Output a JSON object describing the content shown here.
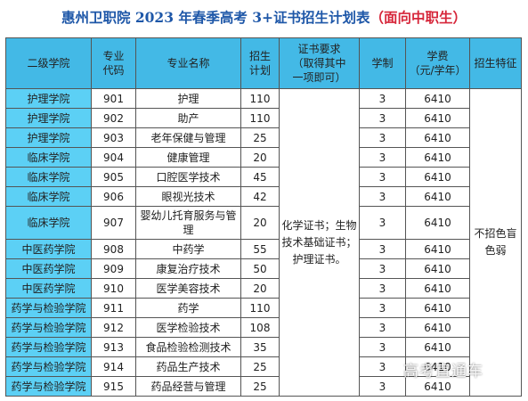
{
  "title": {
    "main": "惠州卫职院 2023 年春季高考 3+证书招生计划表",
    "paren": "（面向中职生）"
  },
  "headers": [
    "二级学院",
    "专业\n代码",
    "专业名称",
    "招生\n计划",
    "证书要求\n（取得其中\n一项即可）",
    "学制",
    "学费\n（元/学年）",
    "招生特征"
  ],
  "rows": [
    {
      "college": "护理学院",
      "code": "901",
      "major": "护理",
      "plan": "110",
      "years": "3",
      "fee": "6410"
    },
    {
      "college": "护理学院",
      "code": "902",
      "major": "助产",
      "plan": "110",
      "years": "3",
      "fee": "6410"
    },
    {
      "college": "护理学院",
      "code": "903",
      "major": "老年保健与管理",
      "plan": "25",
      "years": "3",
      "fee": "6410"
    },
    {
      "college": "临床学院",
      "code": "904",
      "major": "健康管理",
      "plan": "20",
      "years": "3",
      "fee": "6410"
    },
    {
      "college": "临床学院",
      "code": "905",
      "major": "口腔医学技术",
      "plan": "45",
      "years": "3",
      "fee": "6410"
    },
    {
      "college": "临床学院",
      "code": "906",
      "major": "眼视光技术",
      "plan": "42",
      "years": "3",
      "fee": "6410"
    },
    {
      "college": "临床学院",
      "code": "907",
      "major": "婴幼儿托育服务与管理",
      "plan": "20",
      "years": "3",
      "fee": "6410"
    },
    {
      "college": "中医药学院",
      "code": "908",
      "major": "中药学",
      "plan": "55",
      "years": "3",
      "fee": "6410"
    },
    {
      "college": "中医药学院",
      "code": "909",
      "major": "康复治疗技术",
      "plan": "50",
      "years": "3",
      "fee": "6410"
    },
    {
      "college": "中医药学院",
      "code": "910",
      "major": "医学美容技术",
      "plan": "20",
      "years": "3",
      "fee": "6410"
    },
    {
      "college": "药学与检验学院",
      "code": "911",
      "major": "药学",
      "plan": "110",
      "years": "3",
      "fee": "6410"
    },
    {
      "college": "药学与检验学院",
      "code": "912",
      "major": "医学检验技术",
      "plan": "108",
      "years": "3",
      "fee": "6410"
    },
    {
      "college": "药学与检验学院",
      "code": "913",
      "major": "食品检验检测技术",
      "plan": "35",
      "years": "3",
      "fee": "6410"
    },
    {
      "college": "药学与检验学院",
      "code": "914",
      "major": "药品生产技术",
      "plan": "25",
      "years": "3",
      "fee": "6410"
    },
    {
      "college": "药学与检验学院",
      "code": "915",
      "major": "药品经营与管理",
      "plan": "25",
      "years": "3",
      "fee": "6410"
    }
  ],
  "certificate_requirement": "化学证书；生物技术基础证书；护理证书。",
  "feature": "不招色盲色弱",
  "watermark": "高考直通车",
  "colors": {
    "title": "#1e57a8",
    "title_paren": "#d6263a",
    "header_bg": "#43b9e6",
    "college_bg": "#5cd0f5"
  }
}
